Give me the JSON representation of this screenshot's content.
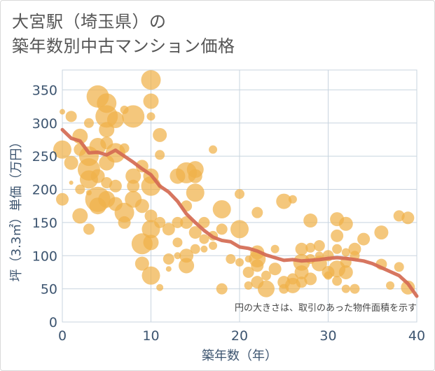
{
  "title_line1": "大宮駅（埼玉県）の",
  "title_line2": "築年数別中古マンション価格",
  "chart_data": {
    "type": "scatter",
    "xlabel": "築年数（年）",
    "ylabel": "坪（3.3㎡）単価（万円）",
    "xlim": [
      0,
      40
    ],
    "ylim": [
      0,
      380
    ],
    "x_ticks": [
      "0",
      "10",
      "20",
      "30",
      "40"
    ],
    "y_ticks": [
      "0",
      "50",
      "100",
      "150",
      "200",
      "250",
      "300",
      "350"
    ],
    "grid": true,
    "note": "円の大きさは、取引のあった物件面積を示す",
    "colors": {
      "bubble": "#f0b24a",
      "trend": "#d46a52"
    },
    "points": [
      [
        0,
        185,
        9
      ],
      [
        0,
        260,
        13
      ],
      [
        0,
        317,
        4
      ],
      [
        1,
        310,
        8
      ],
      [
        1,
        240,
        10
      ],
      [
        1,
        210,
        3
      ],
      [
        2,
        280,
        11
      ],
      [
        2,
        260,
        9
      ],
      [
        2,
        200,
        7
      ],
      [
        2,
        160,
        11
      ],
      [
        3,
        300,
        7
      ],
      [
        3,
        250,
        14
      ],
      [
        3,
        230,
        16
      ],
      [
        3,
        215,
        13
      ],
      [
        3,
        140,
        8
      ],
      [
        3,
        195,
        4
      ],
      [
        4,
        340,
        16
      ],
      [
        4,
        265,
        12
      ],
      [
        4,
        220,
        10
      ],
      [
        4,
        185,
        18
      ],
      [
        4,
        175,
        12
      ],
      [
        5,
        330,
        14
      ],
      [
        5,
        310,
        16
      ],
      [
        5,
        290,
        11
      ],
      [
        5,
        270,
        9
      ],
      [
        5,
        240,
        11
      ],
      [
        5,
        210,
        8
      ],
      [
        5,
        185,
        12
      ],
      [
        6,
        305,
        12
      ],
      [
        6,
        255,
        14
      ],
      [
        6,
        205,
        9
      ],
      [
        6,
        178,
        10
      ],
      [
        7,
        320,
        6
      ],
      [
        7,
        262,
        7
      ],
      [
        7,
        165,
        14
      ],
      [
        7,
        150,
        9
      ],
      [
        8,
        310,
        16
      ],
      [
        8,
        220,
        11
      ],
      [
        8,
        205,
        9
      ],
      [
        8,
        185,
        12
      ],
      [
        9,
        235,
        9
      ],
      [
        9,
        175,
        10
      ],
      [
        9,
        118,
        15
      ],
      [
        9,
        88,
        10
      ],
      [
        10,
        365,
        14
      ],
      [
        10,
        333,
        11
      ],
      [
        10,
        310,
        6
      ],
      [
        10,
        220,
        11
      ],
      [
        10,
        205,
        14
      ],
      [
        10,
        160,
        9
      ],
      [
        10,
        140,
        13
      ],
      [
        10,
        120,
        11
      ],
      [
        10,
        70,
        13
      ],
      [
        11,
        282,
        10
      ],
      [
        11,
        252,
        7
      ],
      [
        11,
        205,
        3
      ],
      [
        11,
        150,
        8
      ],
      [
        11,
        52,
        5
      ],
      [
        12,
        95,
        8
      ],
      [
        12,
        80,
        4
      ],
      [
        12,
        140,
        9
      ],
      [
        13,
        220,
        11
      ],
      [
        13,
        150,
        8
      ],
      [
        13,
        120,
        7
      ],
      [
        13,
        100,
        5
      ],
      [
        14,
        225,
        15
      ],
      [
        14,
        175,
        8
      ],
      [
        14,
        150,
        9
      ],
      [
        14,
        100,
        10
      ],
      [
        14,
        85,
        11
      ],
      [
        15,
        230,
        12
      ],
      [
        15,
        220,
        10
      ],
      [
        15,
        195,
        13
      ],
      [
        15,
        135,
        9
      ],
      [
        15,
        110,
        7
      ],
      [
        16,
        150,
        8
      ],
      [
        16,
        125,
        7
      ],
      [
        16,
        110,
        5
      ],
      [
        17,
        260,
        6
      ],
      [
        17,
        130,
        7
      ],
      [
        17,
        115,
        6
      ],
      [
        18,
        170,
        13
      ],
      [
        18,
        140,
        8
      ],
      [
        18,
        50,
        8
      ],
      [
        19,
        95,
        7
      ],
      [
        20,
        193,
        7
      ],
      [
        20,
        140,
        13
      ],
      [
        20,
        90,
        6
      ],
      [
        21,
        75,
        8
      ],
      [
        21,
        95,
        5
      ],
      [
        21,
        55,
        6
      ],
      [
        22,
        165,
        8
      ],
      [
        22,
        105,
        10
      ],
      [
        22,
        95,
        12
      ],
      [
        22,
        85,
        9
      ],
      [
        22,
        60,
        9
      ],
      [
        23,
        70,
        7
      ],
      [
        23,
        50,
        12
      ],
      [
        24,
        80,
        9
      ],
      [
        24,
        110,
        6
      ],
      [
        25,
        182,
        11
      ],
      [
        25,
        60,
        9
      ],
      [
        25,
        50,
        7
      ],
      [
        26,
        185,
        6
      ],
      [
        26,
        65,
        8
      ],
      [
        26,
        55,
        11
      ],
      [
        27,
        110,
        9
      ],
      [
        27,
        90,
        12
      ],
      [
        27,
        75,
        10
      ],
      [
        27,
        60,
        8
      ],
      [
        28,
        153,
        10
      ],
      [
        28,
        112,
        7
      ],
      [
        28,
        95,
        7
      ],
      [
        28,
        65,
        9
      ],
      [
        29,
        115,
        8
      ],
      [
        29,
        100,
        6
      ],
      [
        29,
        88,
        11
      ],
      [
        30,
        100,
        8
      ],
      [
        30,
        75,
        9
      ],
      [
        30,
        70,
        6
      ],
      [
        31,
        155,
        10
      ],
      [
        31,
        130,
        9
      ],
      [
        31,
        110,
        7
      ],
      [
        31,
        80,
        12
      ],
      [
        31,
        62,
        7
      ],
      [
        32,
        148,
        10
      ],
      [
        32,
        105,
        6
      ],
      [
        32,
        90,
        8
      ],
      [
        32,
        75,
        10
      ],
      [
        32,
        50,
        6
      ],
      [
        33,
        110,
        9
      ],
      [
        33,
        100,
        7
      ],
      [
        33,
        50,
        7
      ],
      [
        34,
        125,
        9
      ],
      [
        36,
        135,
        10
      ],
      [
        36,
        87,
        8
      ],
      [
        37,
        55,
        6
      ],
      [
        38,
        160,
        8
      ],
      [
        38,
        83,
        7
      ],
      [
        39,
        157,
        9
      ],
      [
        39,
        52,
        10
      ]
    ],
    "trend": [
      [
        0,
        290
      ],
      [
        1,
        277
      ],
      [
        2,
        273
      ],
      [
        3,
        255
      ],
      [
        4,
        256
      ],
      [
        5,
        252
      ],
      [
        6,
        259
      ],
      [
        7,
        250
      ],
      [
        8,
        241
      ],
      [
        9,
        231
      ],
      [
        10,
        222
      ],
      [
        11,
        205
      ],
      [
        12,
        196
      ],
      [
        13,
        182
      ],
      [
        14,
        163
      ],
      [
        15,
        150
      ],
      [
        16,
        138
      ],
      [
        17,
        128
      ],
      [
        18,
        123
      ],
      [
        19,
        121
      ],
      [
        20,
        113
      ],
      [
        21,
        111
      ],
      [
        22,
        107
      ],
      [
        23,
        101
      ],
      [
        24,
        97
      ],
      [
        25,
        93
      ],
      [
        26,
        94
      ],
      [
        27,
        92
      ],
      [
        28,
        93
      ],
      [
        29,
        94
      ],
      [
        30,
        96
      ],
      [
        31,
        97
      ],
      [
        32,
        96
      ],
      [
        33,
        94
      ],
      [
        34,
        92
      ],
      [
        35,
        88
      ],
      [
        36,
        82
      ],
      [
        37,
        76
      ],
      [
        38,
        70
      ],
      [
        39,
        58
      ],
      [
        40,
        39
      ]
    ]
  }
}
